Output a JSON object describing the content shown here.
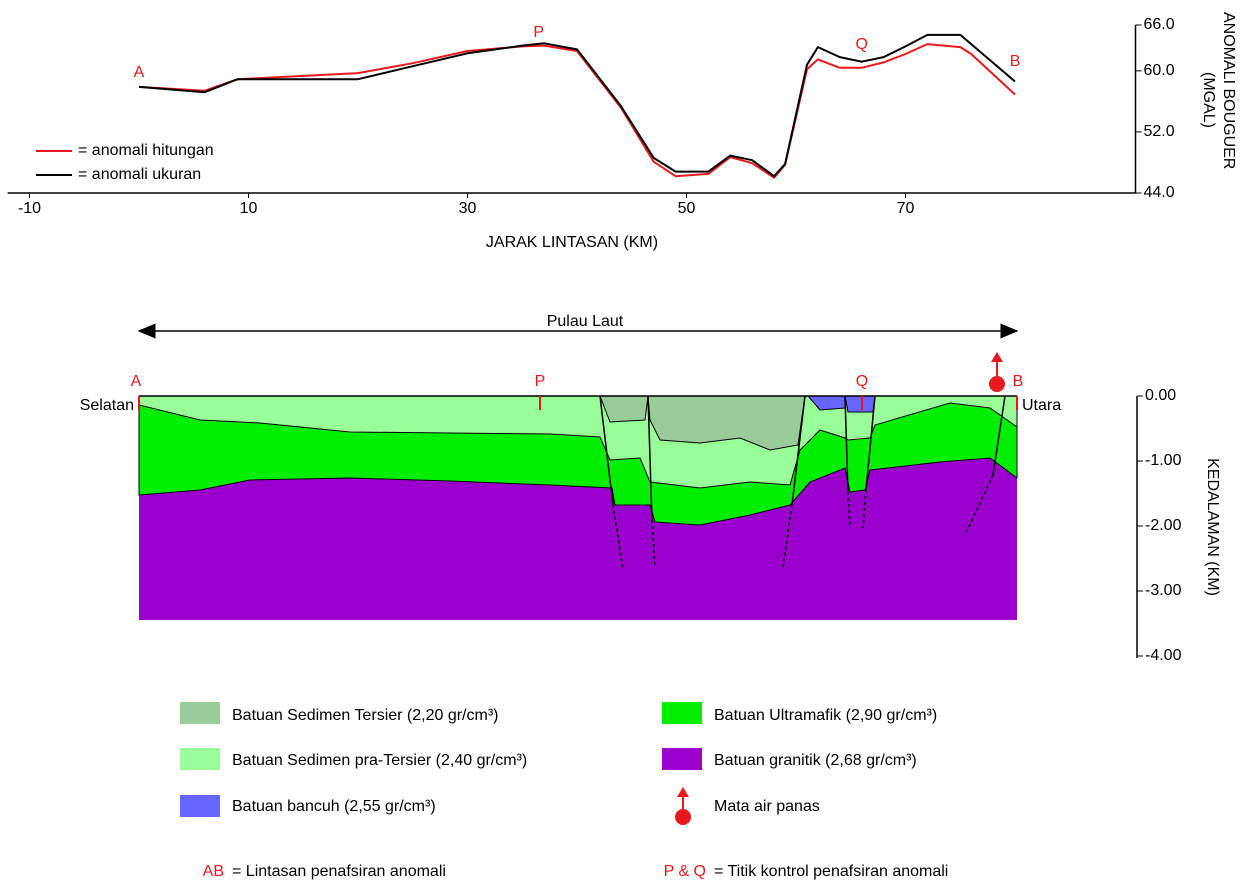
{
  "chart_data": {
    "type": "line",
    "x_label": "JARAK LINTASAN (KM)",
    "y_label": [
      "ANOMALI BOUGUER",
      "(MGAL)"
    ],
    "xlim": [
      -12,
      91
    ],
    "xticks": [
      -10,
      10,
      30,
      50,
      70
    ],
    "ylim": [
      44,
      66
    ],
    "yticks": [
      {
        "value": 44,
        "label": "44.0"
      },
      {
        "value": 52,
        "label": "52.0"
      },
      {
        "value": 60,
        "label": "60.0"
      },
      {
        "value": 66,
        "label": "66.0"
      }
    ],
    "x": [
      0,
      6,
      9,
      20,
      25,
      30,
      35,
      37,
      40,
      44,
      47,
      49,
      52,
      54,
      56,
      58,
      59,
      61,
      62,
      64,
      66,
      68,
      70,
      72,
      75,
      76,
      80
    ],
    "series": [
      {
        "name": "= anomali hitungan",
        "color": "#e8191e",
        "values": [
          57.9,
          57.4,
          58.9,
          59.7,
          61.0,
          62.6,
          63.2,
          63.3,
          62.6,
          55.2,
          48.1,
          46.2,
          46.5,
          48.7,
          47.9,
          46.0,
          47.7,
          60.2,
          61.5,
          60.4,
          60.4,
          61.1,
          62.2,
          63.5,
          63.1,
          62.2,
          56.9
        ]
      },
      {
        "name": "= anomali ukuran",
        "color": "#000000",
        "values": [
          57.9,
          57.2,
          58.9,
          58.9,
          60.6,
          62.3,
          63.3,
          63.6,
          62.8,
          55.4,
          48.6,
          46.8,
          46.8,
          48.9,
          48.3,
          46.2,
          47.8,
          60.8,
          63.1,
          61.8,
          61.2,
          61.8,
          63.2,
          64.7,
          64.7,
          63.5,
          58.6
        ]
      }
    ],
    "markers": [
      {
        "label": "A",
        "x": 0
      },
      {
        "label": "P",
        "x": 36.5
      },
      {
        "label": "Q",
        "x": 66
      },
      {
        "label": "B",
        "x": 80
      }
    ]
  },
  "section": {
    "title": "Pulau Laut",
    "left": "Selatan",
    "right": "Utara",
    "points": [
      "A",
      "P",
      "Q",
      "B"
    ],
    "depth_label": "KEDALAMAN (KM)",
    "depth_ticks": [
      "0.00",
      "-1.00",
      "-2.00",
      "-3.00",
      "-4.00"
    ]
  },
  "legend": {
    "items": [
      "Batuan Sedimen Tersier (2,20 gr/cm³)",
      "Batuan Ultramafik (2,90 gr/cm³)",
      "Batuan Sedimen pra-Tersier (2,40 gr/cm³)",
      "Batuan granitik (2,68 gr/cm³)",
      "Batuan bancuh (2,55 gr/cm³)",
      "Mata air panas"
    ],
    "notes": [
      {
        "key": "AB",
        "text": "= Lintasan penafsiran anomali"
      },
      {
        "key": "P & Q",
        "text": "= Titik kontrol penafsiran anomali"
      }
    ]
  }
}
